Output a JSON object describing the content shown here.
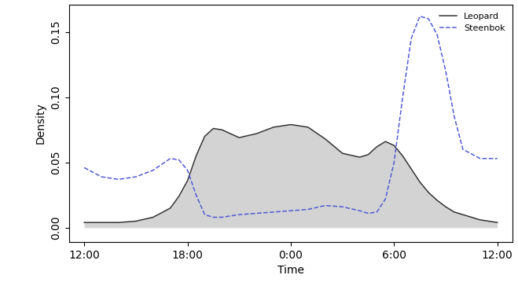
{
  "chart_data": {
    "type": "line",
    "x_label": "Time",
    "y_label": "Density",
    "x": [
      0,
      1,
      2,
      3,
      4,
      5,
      5.5,
      6,
      6.5,
      7,
      7.5,
      8,
      9,
      10,
      11,
      12,
      13,
      14,
      15,
      16,
      16.5,
      17,
      17.5,
      18,
      18.5,
      19,
      19.5,
      20,
      20.5,
      21,
      21.5,
      22,
      23,
      24
    ],
    "series": [
      {
        "name": "Leopard",
        "type": "area",
        "color": "#333333",
        "line_style": "solid",
        "values": [
          0.004,
          0.004,
          0.004,
          0.005,
          0.008,
          0.015,
          0.024,
          0.036,
          0.055,
          0.07,
          0.076,
          0.075,
          0.069,
          0.072,
          0.077,
          0.079,
          0.077,
          0.068,
          0.057,
          0.054,
          0.056,
          0.062,
          0.066,
          0.063,
          0.055,
          0.045,
          0.035,
          0.027,
          0.021,
          0.016,
          0.012,
          0.01,
          0.006,
          0.004
        ]
      },
      {
        "name": "Steenbok",
        "type": "line",
        "color": "#4f5bd5",
        "line_style": "dashed",
        "values": [
          0.046,
          0.039,
          0.037,
          0.039,
          0.044,
          0.053,
          0.052,
          0.044,
          0.025,
          0.01,
          0.008,
          0.008,
          0.01,
          0.011,
          0.012,
          0.013,
          0.014,
          0.017,
          0.016,
          0.013,
          0.011,
          0.012,
          0.022,
          0.05,
          0.1,
          0.145,
          0.162,
          0.16,
          0.148,
          0.12,
          0.085,
          0.06,
          0.053,
          0.053
        ]
      }
    ],
    "xlim": [
      -0.86,
      24.9
    ],
    "xticks": [
      {
        "value": 0,
        "label": "12:00"
      },
      {
        "value": 6,
        "label": "18:00"
      },
      {
        "value": 12,
        "label": "0:00"
      },
      {
        "value": 18,
        "label": "6:00"
      },
      {
        "value": 24,
        "label": "12:00"
      }
    ],
    "ylim": [
      -0.011,
      0.171
    ],
    "yticks": [
      {
        "value": 0,
        "label": "0.00"
      },
      {
        "value": 0.05,
        "label": "0.05"
      },
      {
        "value": 0.1,
        "label": "0.10"
      },
      {
        "value": 0.15,
        "label": "0.15"
      }
    ],
    "grid": false,
    "legend": "upper right"
  }
}
